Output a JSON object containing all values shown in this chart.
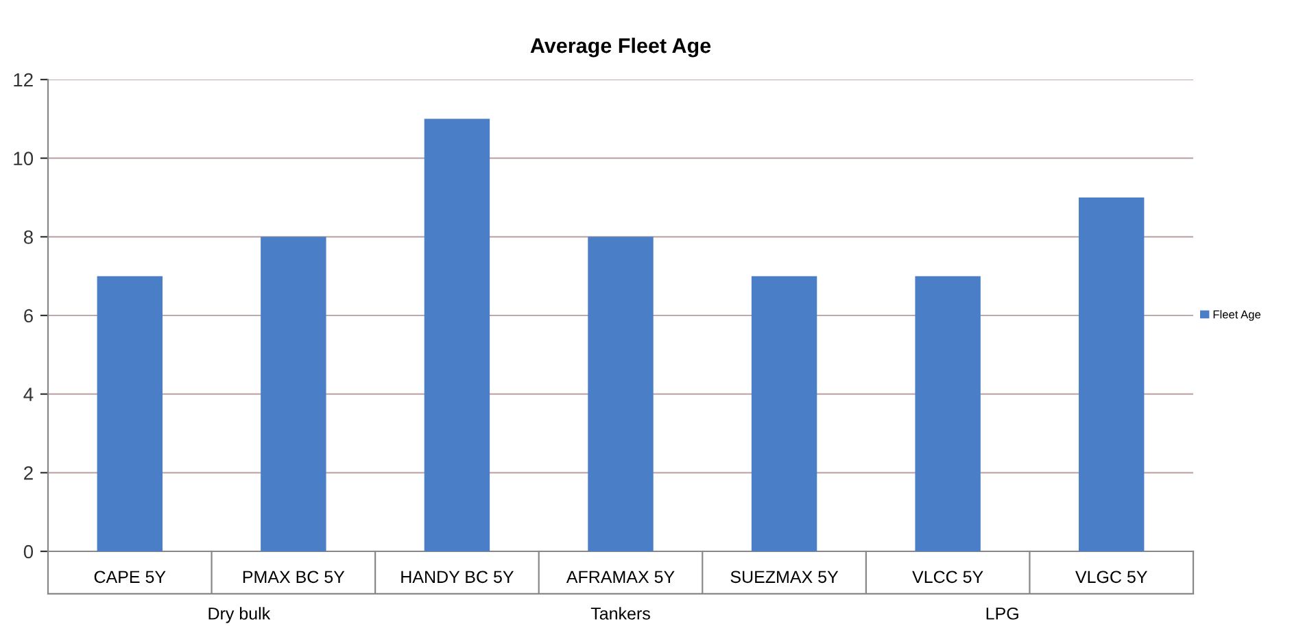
{
  "chart_data": {
    "type": "bar",
    "title": "Average Fleet Age",
    "categories": [
      "CAPE 5Y",
      "PMAX BC 5Y",
      "HANDY BC 5Y",
      "AFRAMAX 5Y",
      "SUEZMAX 5Y",
      "VLCC 5Y",
      "VLGC 5Y"
    ],
    "series": [
      {
        "name": "Fleet Age",
        "color": "#4a7fc8",
        "values": [
          7,
          8,
          11,
          8,
          7,
          7,
          9
        ]
      }
    ],
    "ylim": [
      0,
      12
    ],
    "yticks": [
      0,
      2,
      4,
      6,
      8,
      10,
      12
    ],
    "grid": "y",
    "legend": "right",
    "annotations": [
      "Dry bulk",
      "Tankers",
      "LPG"
    ]
  }
}
